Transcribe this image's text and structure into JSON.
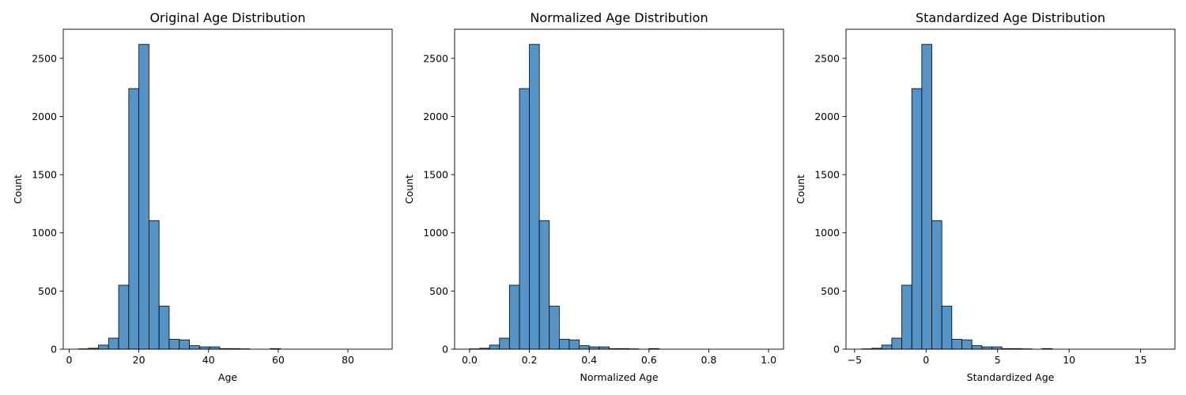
{
  "chart_data": [
    {
      "type": "bar",
      "title": "Original Age Distribution",
      "xlabel": "Age",
      "ylabel": "Count",
      "xlim": [
        -1.7,
        92.7
      ],
      "ylim": [
        0,
        2750
      ],
      "xticks": [
        0,
        20,
        40,
        60,
        80
      ],
      "yticks": [
        0,
        500,
        1000,
        1500,
        2000,
        2500
      ],
      "bin_edges": [
        2.6,
        5.5,
        8.4,
        11.3,
        14.2,
        17.1,
        20.0,
        22.9,
        25.8,
        28.7,
        31.6,
        34.5,
        37.4,
        40.3,
        43.2,
        46.1,
        49.0,
        51.9,
        54.8,
        57.7,
        60.6,
        63.5,
        66.4,
        69.3,
        72.2,
        75.1,
        78.0,
        80.9,
        83.8,
        86.7,
        89.6
      ],
      "values": [
        3,
        8,
        35,
        95,
        550,
        2240,
        2620,
        1105,
        370,
        85,
        80,
        30,
        20,
        20,
        5,
        5,
        3,
        0,
        0,
        5,
        0,
        0,
        0,
        0,
        0,
        0,
        0,
        0,
        0,
        0
      ],
      "color": "#5594c6",
      "grid": false
    },
    {
      "type": "bar",
      "title": "Normalized Age Distribution",
      "xlabel": "Normalized Age",
      "ylabel": "Count",
      "xlim": [
        -0.05,
        1.05
      ],
      "ylim": [
        0,
        2750
      ],
      "xticks": [
        "0.0",
        "0.2",
        "0.4",
        "0.6",
        "0.8",
        "1.0"
      ],
      "yticks": [
        0,
        500,
        1000,
        1500,
        2000,
        2500
      ],
      "bin_edges": [
        0,
        0.0333,
        0.0667,
        0.1,
        0.1333,
        0.1667,
        0.2,
        0.2333,
        0.2667,
        0.3,
        0.3333,
        0.3667,
        0.4,
        0.4333,
        0.4667,
        0.5,
        0.5333,
        0.5667,
        0.6,
        0.6333,
        0.6667,
        0.7,
        0.7333,
        0.7667,
        0.8,
        0.8333,
        0.8667,
        0.9,
        0.9333,
        0.9667,
        1.0
      ],
      "values": [
        3,
        8,
        35,
        95,
        550,
        2240,
        2620,
        1105,
        370,
        85,
        80,
        30,
        20,
        20,
        5,
        5,
        3,
        0,
        5,
        0,
        0,
        0,
        0,
        0,
        0,
        0,
        0,
        0,
        0,
        0
      ],
      "color": "#5594c6",
      "grid": false
    },
    {
      "type": "bar",
      "title": "Standardized Age Distribution",
      "xlabel": "Standardized Age",
      "ylabel": "Count",
      "xlim": [
        -5.6,
        17.4
      ],
      "ylim": [
        0,
        2750
      ],
      "xticks": [
        -5,
        0,
        5,
        10,
        15
      ],
      "yticks": [
        0,
        500,
        1000,
        1500,
        2000,
        2500
      ],
      "bin_edges": [
        -4.5,
        -3.8,
        -3.1,
        -2.4,
        -1.7,
        -1.0,
        -0.3,
        0.4,
        1.1,
        1.8,
        2.5,
        3.2,
        3.9,
        4.6,
        5.3,
        6.0,
        6.7,
        7.4,
        8.1,
        8.8,
        9.5,
        10.2,
        10.9,
        11.6,
        12.3,
        13.0,
        13.7,
        14.4,
        15.1,
        15.8,
        16.5
      ],
      "values": [
        3,
        8,
        35,
        95,
        550,
        2240,
        2620,
        1105,
        370,
        85,
        80,
        30,
        20,
        20,
        5,
        5,
        3,
        0,
        5,
        0,
        0,
        0,
        0,
        0,
        0,
        0,
        0,
        0,
        0,
        0
      ],
      "color": "#5594c6",
      "grid": false
    }
  ]
}
